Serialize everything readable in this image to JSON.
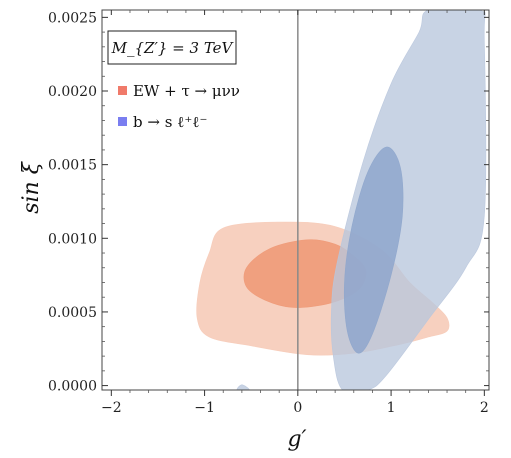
{
  "chart_data": {
    "type": "contour",
    "xlabel": "g′",
    "ylabel": "sin ξ",
    "xlim": [
      -2.1,
      2.05
    ],
    "ylim": [
      -3e-05,
      0.00255
    ],
    "x_ticks": [
      -2,
      -1,
      0,
      1,
      2
    ],
    "x_tick_labels": [
      "−2",
      "−1",
      "0",
      "1",
      "2"
    ],
    "y_ticks": [
      0.0,
      0.0005,
      0.001,
      0.0015,
      0.002,
      0.0025
    ],
    "y_tick_labels": [
      "0.0000",
      "0.0005",
      "0.0010",
      "0.0015",
      "0.0020",
      "0.0025"
    ],
    "reference_line_x": 0,
    "annotation": "M_{Z′} = 3 TeV",
    "legend_position": "top-left",
    "series": [
      {
        "name": "EW + τ → μνν",
        "color": "#f07a6a",
        "regions": [
          {
            "level": "outer",
            "color": "#f6cbb8",
            "points": [
              [
                -0.8,
                0.00107
              ],
              [
                -0.2,
                0.00111
              ],
              [
                0.4,
                0.00108
              ],
              [
                0.9,
                0.00092
              ],
              [
                1.2,
                0.0007
              ],
              [
                1.45,
                0.00056
              ],
              [
                1.6,
                0.00046
              ],
              [
                1.6,
                0.00037
              ],
              [
                1.4,
                0.00033
              ],
              [
                1.1,
                0.00028
              ],
              [
                0.6,
                0.00022
              ],
              [
                0.1,
                0.00021
              ],
              [
                -0.5,
                0.00027
              ],
              [
                -0.95,
                0.00033
              ],
              [
                -1.08,
                0.00046
              ],
              [
                -1.05,
                0.0007
              ],
              [
                -0.95,
                0.0009
              ]
            ]
          },
          {
            "level": "inner",
            "color": "#ee9a78",
            "points": [
              [
                -0.3,
                0.00093
              ],
              [
                0.1,
                0.00099
              ],
              [
                0.4,
                0.00096
              ],
              [
                0.6,
                0.00088
              ],
              [
                0.73,
                0.00078
              ],
              [
                0.65,
                0.00065
              ],
              [
                0.35,
                0.00056
              ],
              [
                -0.05,
                0.00053
              ],
              [
                -0.35,
                0.00058
              ],
              [
                -0.55,
                0.00067
              ],
              [
                -0.55,
                0.0008
              ]
            ]
          }
        ]
      },
      {
        "name": "b → s ℓ⁺ℓ⁻",
        "color": "#7a7ef0",
        "regions": [
          {
            "level": "outer",
            "color": "#b9c7dd",
            "points": [
              [
                0.42,
                0.00083
              ],
              [
                0.7,
                0.00152
              ],
              [
                1.0,
                0.00205
              ],
              [
                1.3,
                0.0024
              ],
              [
                1.4,
                0.00255
              ],
              [
                1.95,
                0.00255
              ],
              [
                2.0,
                0.00235
              ],
              [
                2.0,
                0.00115
              ],
              [
                1.8,
                0.0008
              ],
              [
                1.4,
                0.00045
              ],
              [
                0.95,
                7e-05
              ],
              [
                0.75,
                -3e-05
              ],
              [
                0.48,
                -3e-05
              ],
              [
                0.38,
                0.0002
              ],
              [
                0.36,
                0.0005
              ]
            ]
          },
          {
            "level": "inner",
            "color": "#8ea6cc",
            "points": [
              [
                0.75,
                0.00145
              ],
              [
                0.95,
                0.00162
              ],
              [
                1.1,
                0.00148
              ],
              [
                1.12,
                0.00115
              ],
              [
                1.0,
                0.00075
              ],
              [
                0.8,
                0.00035
              ],
              [
                0.65,
                0.00022
              ],
              [
                0.53,
                0.00037
              ],
              [
                0.5,
                0.0007
              ],
              [
                0.58,
                0.00108
              ]
            ]
          },
          {
            "level": "outer-fragment",
            "color": "#b9c7dd",
            "points": [
              [
                -0.65,
                -3e-05
              ],
              [
                -0.6,
                5e-06
              ],
              [
                -0.52,
                -3e-05
              ]
            ]
          }
        ]
      }
    ]
  }
}
